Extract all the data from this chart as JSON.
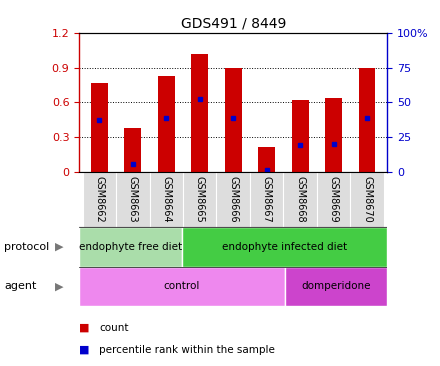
{
  "title": "GDS491 / 8449",
  "samples": [
    "GSM8662",
    "GSM8663",
    "GSM8664",
    "GSM8665",
    "GSM8666",
    "GSM8667",
    "GSM8668",
    "GSM8669",
    "GSM8670"
  ],
  "red_bars": [
    0.77,
    0.38,
    0.83,
    1.02,
    0.9,
    0.22,
    0.62,
    0.64,
    0.9
  ],
  "blue_dots": [
    0.45,
    0.07,
    0.47,
    0.63,
    0.47,
    0.02,
    0.23,
    0.24,
    0.47
  ],
  "left_ylim": [
    0,
    1.2
  ],
  "right_ylim": [
    0,
    100
  ],
  "left_yticks": [
    0,
    0.3,
    0.6,
    0.9,
    1.2
  ],
  "right_yticks": [
    0,
    25,
    50,
    75,
    100
  ],
  "left_yticklabels": [
    "0",
    "0.3",
    "0.6",
    "0.9",
    "1.2"
  ],
  "right_yticklabels": [
    "0",
    "25",
    "50",
    "75",
    "100%"
  ],
  "protocol_groups": [
    {
      "label": "endophyte free diet",
      "start": 0,
      "end": 3,
      "color": "#aaddaa"
    },
    {
      "label": "endophyte infected diet",
      "start": 3,
      "end": 9,
      "color": "#44cc44"
    }
  ],
  "agent_groups": [
    {
      "label": "control",
      "start": 0,
      "end": 6,
      "color": "#ee88ee"
    },
    {
      "label": "domperidone",
      "start": 6,
      "end": 9,
      "color": "#cc44cc"
    }
  ],
  "bar_color": "#cc0000",
  "dot_color": "#0000cc",
  "bar_width": 0.5,
  "bg_color": "#ffffff",
  "left_axis_color": "#cc0000",
  "right_axis_color": "#0000cc",
  "tick_label_gray": "#999999",
  "protocol_label": "protocol",
  "agent_label": "agent",
  "legend_count": "count",
  "legend_pct": "percentile rank within the sample",
  "grid_yticks": [
    0.3,
    0.6,
    0.9
  ]
}
